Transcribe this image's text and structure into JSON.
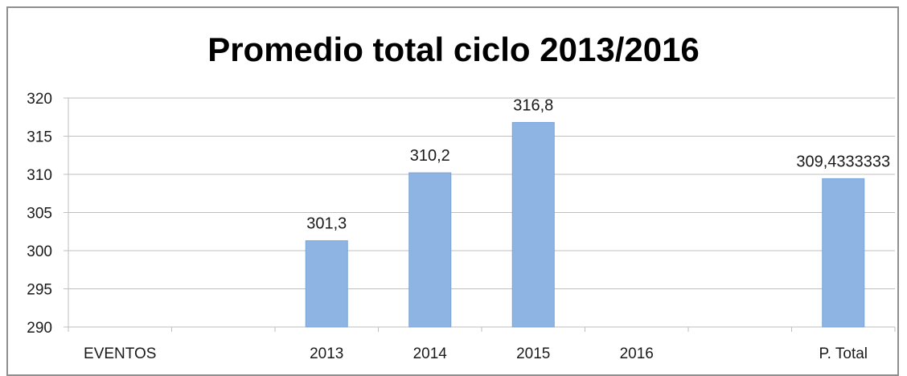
{
  "chart_data": {
    "type": "bar",
    "title": "Promedio total ciclo 2013/2016",
    "categories": [
      "EVENTOS",
      "",
      "2013",
      "2014",
      "2015",
      "2016",
      "",
      "P. Total"
    ],
    "values": [
      null,
      null,
      301.3,
      310.2,
      316.8,
      null,
      null,
      309.4333333
    ],
    "data_labels": [
      "",
      "",
      "301,3",
      "310,2",
      "316,8",
      "",
      "",
      "309,4333333"
    ],
    "xlabel": "",
    "ylabel": "",
    "ylim": [
      290,
      320
    ],
    "yticks": [
      290,
      295,
      300,
      305,
      310,
      315,
      320
    ],
    "grid": true,
    "legend": "none",
    "bar_color": "#8db4e3",
    "bar_edge_color": "#7aa3d6",
    "grid_color": "#bfbfbf"
  }
}
